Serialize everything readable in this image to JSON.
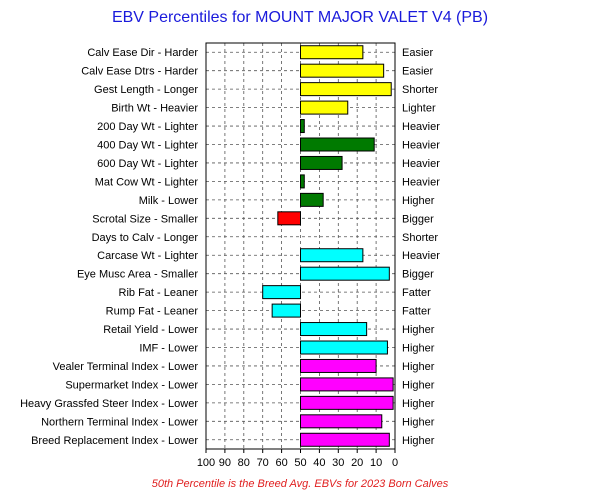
{
  "chart_data": {
    "type": "bar",
    "title": "EBV Percentiles for MOUNT MAJOR VALET V4 (PB)",
    "footnote": "50th Percentile is the Breed Avg. EBVs for 2023 Born Calves",
    "xlim": [
      100,
      0
    ],
    "x_ticks": [
      "100",
      "90",
      "80",
      "70",
      "60",
      "50",
      "40",
      "30",
      "20",
      "10",
      "0"
    ],
    "baseline": 50,
    "grid": true,
    "colors": {
      "yellow": "#ffff00",
      "green": "#007a00",
      "red": "#ff0000",
      "cyan": "#00ffff",
      "magenta": "#ff00ff"
    },
    "traits": [
      {
        "left": "Calv Ease Dir - Harder",
        "right": "Easier",
        "value": 17,
        "color": "yellow"
      },
      {
        "left": "Calv Ease Dtrs - Harder",
        "right": "Easier",
        "value": 6,
        "color": "yellow"
      },
      {
        "left": "Gest Length - Longer",
        "right": "Shorter",
        "value": 2,
        "color": "yellow"
      },
      {
        "left": "Birth Wt - Heavier",
        "right": "Lighter",
        "value": 25,
        "color": "yellow"
      },
      {
        "left": "200 Day Wt - Lighter",
        "right": "Heavier",
        "value": 48,
        "color": "green"
      },
      {
        "left": "400 Day Wt - Lighter",
        "right": "Heavier",
        "value": 11,
        "color": "green"
      },
      {
        "left": "600 Day Wt - Lighter",
        "right": "Heavier",
        "value": 28,
        "color": "green"
      },
      {
        "left": "Mat Cow Wt - Lighter",
        "right": "Heavier",
        "value": 48,
        "color": "green"
      },
      {
        "left": "Milk - Lower",
        "right": "Higher",
        "value": 38,
        "color": "green"
      },
      {
        "left": "Scrotal Size - Smaller",
        "right": "Bigger",
        "value": 62,
        "color": "red"
      },
      {
        "left": "Days to Calv - Longer",
        "right": "Shorter",
        "value": 50,
        "color": "yellow"
      },
      {
        "left": "Carcase Wt - Lighter",
        "right": "Heavier",
        "value": 17,
        "color": "cyan"
      },
      {
        "left": "Eye Musc Area - Smaller",
        "right": "Bigger",
        "value": 3,
        "color": "cyan"
      },
      {
        "left": "Rib Fat - Leaner",
        "right": "Fatter",
        "value": 70,
        "color": "cyan"
      },
      {
        "left": "Rump Fat - Leaner",
        "right": "Fatter",
        "value": 65,
        "color": "cyan"
      },
      {
        "left": "Retail Yield - Lower",
        "right": "Higher",
        "value": 15,
        "color": "cyan"
      },
      {
        "left": "IMF - Lower",
        "right": "Higher",
        "value": 4,
        "color": "cyan"
      },
      {
        "left": "Vealer Terminal Index - Lower",
        "right": "Higher",
        "value": 10,
        "color": "magenta"
      },
      {
        "left": "Supermarket Index - Lower",
        "right": "Higher",
        "value": 1,
        "color": "magenta"
      },
      {
        "left": "Heavy Grassfed Steer Index - Lower",
        "right": "Higher",
        "value": 1,
        "color": "magenta"
      },
      {
        "left": "Northern Terminal Index - Lower",
        "right": "Higher",
        "value": 7,
        "color": "magenta"
      },
      {
        "left": "Breed Replacement Index - Lower",
        "right": "Higher",
        "value": 3,
        "color": "magenta"
      }
    ]
  }
}
